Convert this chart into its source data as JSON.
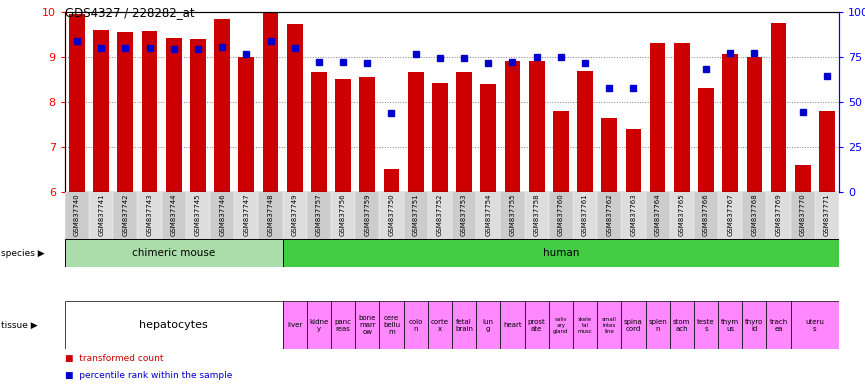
{
  "title": "GDS4327 / 228282_at",
  "samples": [
    "GSM837740",
    "GSM837741",
    "GSM837742",
    "GSM837743",
    "GSM837744",
    "GSM837745",
    "GSM837746",
    "GSM837747",
    "GSM837748",
    "GSM837749",
    "GSM837757",
    "GSM837756",
    "GSM837759",
    "GSM837750",
    "GSM837751",
    "GSM837752",
    "GSM837753",
    "GSM837754",
    "GSM837755",
    "GSM837758",
    "GSM837760",
    "GSM837761",
    "GSM837762",
    "GSM837763",
    "GSM837764",
    "GSM837765",
    "GSM837766",
    "GSM837767",
    "GSM837768",
    "GSM837769",
    "GSM837770",
    "GSM837771"
  ],
  "bar_values": [
    9.95,
    9.58,
    9.55,
    9.57,
    9.42,
    9.38,
    9.83,
    9.0,
    10.0,
    9.72,
    8.67,
    8.5,
    8.55,
    6.5,
    8.67,
    8.42,
    8.65,
    8.4,
    8.9,
    8.9,
    7.8,
    8.68,
    7.65,
    7.4,
    9.3,
    9.3,
    8.3,
    9.05,
    9.0,
    9.75,
    6.6,
    7.8
  ],
  "dot_values": [
    9.35,
    9.2,
    9.2,
    9.2,
    9.18,
    9.17,
    9.22,
    9.05,
    9.35,
    9.2,
    8.88,
    8.88,
    8.85,
    7.75,
    9.05,
    8.97,
    8.97,
    8.87,
    8.88,
    9.0,
    9.0,
    8.87,
    8.3,
    8.3,
    null,
    null,
    8.73,
    9.08,
    9.08,
    null,
    7.78,
    8.57
  ],
  "ylim_left": [
    6,
    10
  ],
  "ylim_right": [
    0,
    100
  ],
  "yticks_left": [
    6,
    7,
    8,
    9,
    10
  ],
  "yticks_right": [
    0,
    25,
    50,
    75,
    100
  ],
  "bar_color": "#cc0000",
  "dot_color": "#0000cc",
  "bar_bottom": 6,
  "species_info": [
    {
      "label": "chimeric mouse",
      "start": 0,
      "end": 9,
      "color": "#aaddaa"
    },
    {
      "label": "human",
      "start": 9,
      "end": 32,
      "color": "#44cc44"
    }
  ],
  "tissue_info": [
    {
      "label": "hepatocytes",
      "start": 0,
      "end": 9,
      "color": "#ffffff",
      "fontsize": 8
    },
    {
      "label": "liver",
      "start": 9,
      "end": 10,
      "color": "#ff88ff",
      "fontsize": 5
    },
    {
      "label": "kidne\ny",
      "start": 10,
      "end": 11,
      "color": "#ff88ff",
      "fontsize": 5
    },
    {
      "label": "panc\nreas",
      "start": 11,
      "end": 12,
      "color": "#ff88ff",
      "fontsize": 5
    },
    {
      "label": "bone\nmarr\now",
      "start": 12,
      "end": 13,
      "color": "#ff88ff",
      "fontsize": 5
    },
    {
      "label": "cere\nbellu\nm",
      "start": 13,
      "end": 14,
      "color": "#ff88ff",
      "fontsize": 5
    },
    {
      "label": "colo\nn",
      "start": 14,
      "end": 15,
      "color": "#ff88ff",
      "fontsize": 5
    },
    {
      "label": "corte\nx",
      "start": 15,
      "end": 16,
      "color": "#ff88ff",
      "fontsize": 5
    },
    {
      "label": "fetal\nbrain",
      "start": 16,
      "end": 17,
      "color": "#ff88ff",
      "fontsize": 5
    },
    {
      "label": "lun\ng",
      "start": 17,
      "end": 18,
      "color": "#ff88ff",
      "fontsize": 5
    },
    {
      "label": "heart",
      "start": 18,
      "end": 19,
      "color": "#ff88ff",
      "fontsize": 5
    },
    {
      "label": "prost\nate",
      "start": 19,
      "end": 20,
      "color": "#ff88ff",
      "fontsize": 5
    },
    {
      "label": "saliv\nary\ngland",
      "start": 20,
      "end": 21,
      "color": "#ff88ff",
      "fontsize": 4
    },
    {
      "label": "skele\ntal\nmusc",
      "start": 21,
      "end": 22,
      "color": "#ff88ff",
      "fontsize": 4
    },
    {
      "label": "small\nintes\nline",
      "start": 22,
      "end": 23,
      "color": "#ff88ff",
      "fontsize": 4
    },
    {
      "label": "spina\ncord",
      "start": 23,
      "end": 24,
      "color": "#ff88ff",
      "fontsize": 5
    },
    {
      "label": "splen\nn",
      "start": 24,
      "end": 25,
      "color": "#ff88ff",
      "fontsize": 5
    },
    {
      "label": "stom\nach",
      "start": 25,
      "end": 26,
      "color": "#ff88ff",
      "fontsize": 5
    },
    {
      "label": "teste\ns",
      "start": 26,
      "end": 27,
      "color": "#ff88ff",
      "fontsize": 5
    },
    {
      "label": "thym\nus",
      "start": 27,
      "end": 28,
      "color": "#ff88ff",
      "fontsize": 5
    },
    {
      "label": "thyro\nid",
      "start": 28,
      "end": 29,
      "color": "#ff88ff",
      "fontsize": 5
    },
    {
      "label": "trach\nea",
      "start": 29,
      "end": 30,
      "color": "#ff88ff",
      "fontsize": 5
    },
    {
      "label": "uteru\ns",
      "start": 30,
      "end": 32,
      "color": "#ff88ff",
      "fontsize": 5
    }
  ],
  "xtick_bg_colors": [
    "#cccccc",
    "#dddddd"
  ]
}
